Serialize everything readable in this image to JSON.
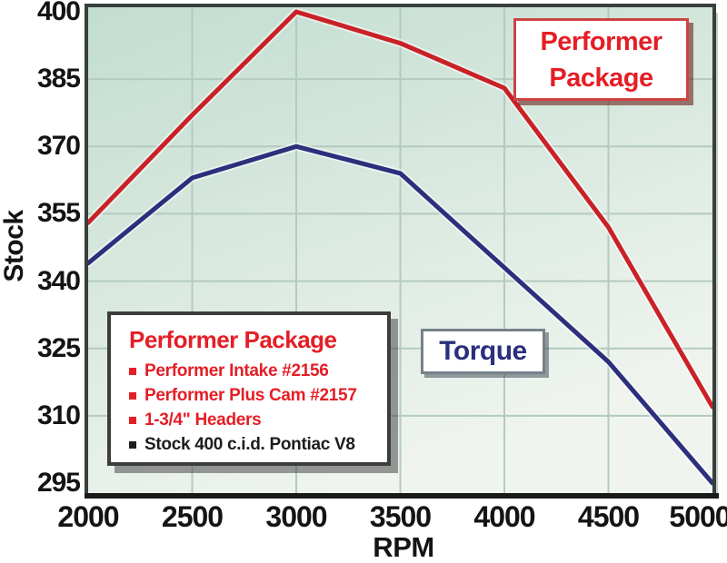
{
  "chart_data": {
    "type": "line",
    "xlabel": "RPM",
    "ylabel": "Stock",
    "x": [
      2000,
      2500,
      3000,
      3500,
      4000,
      4500,
      5000
    ],
    "xticks": [
      2000,
      2500,
      3000,
      3500,
      4000,
      4500,
      5000
    ],
    "yticks": [
      295,
      310,
      325,
      340,
      355,
      370,
      385,
      400
    ],
    "xlim": [
      2000,
      5000
    ],
    "ylim": [
      295,
      400
    ],
    "grid": true,
    "legend_position": "inside-lower-left",
    "series": [
      {
        "name": "Performer Package",
        "color": "#c92127",
        "values": [
          353,
          377,
          400,
          393,
          383,
          352,
          312
        ]
      },
      {
        "name": "Torque",
        "color": "#2c2f7c",
        "values": [
          344,
          363,
          370,
          364,
          343,
          322,
          295
        ]
      }
    ]
  },
  "callouts": {
    "performer_line1": "Performer",
    "performer_line2": "Package",
    "torque": "Torque"
  },
  "legend": {
    "title": "Performer Package",
    "title_color": "#e41e26",
    "items": [
      {
        "text": "Performer Intake #2156",
        "color": "#e41e26"
      },
      {
        "text": "Performer Plus Cam #2157",
        "color": "#e41e26"
      },
      {
        "text": "1-3/4\" Headers",
        "color": "#e41e26"
      },
      {
        "text": "Stock 400 c.i.d. Pontiac V8",
        "color": "#1d1d1d"
      }
    ]
  },
  "colors": {
    "performer_red": "#c92127",
    "performer_red_text": "#e41e26",
    "torque_blue": "#2c2f7c",
    "plot_bg_top": "#c2ddd0",
    "plot_bg_bottom": "#f0f4ef",
    "gridline": "#b3cabf",
    "plot_border": "#37403a",
    "x_axis_line": "#191919",
    "tick_text": "#141414"
  }
}
